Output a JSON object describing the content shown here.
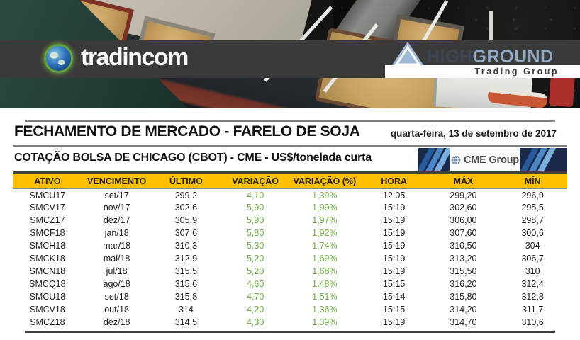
{
  "banner": {
    "tradincom_label": "tradincom",
    "highground": {
      "part1": "HIGH",
      "part2": "GROUND",
      "tagline": "Trading Group"
    }
  },
  "header": {
    "title": "FECHAMENTO DE MERCADO - FARELO DE SOJA",
    "date": "quarta-feira, 13 de setembro de 2017",
    "subtitle": "COTAÇÃO BOLSA DE CHICAGO (CBOT) - CME - US$/tonelada curta",
    "cme_logo_label": "CME Group"
  },
  "icons": [
    "globe-icon",
    "mountain-icon",
    "cme-globe-icon"
  ],
  "colors": {
    "table_header_bg": "#FFC000",
    "positive_green": "#70AD47",
    "logo_bar_dark": "#3A3A3A",
    "cme_navy": "#1B2A4A",
    "rule_gray": "#7F7F7F",
    "rule_dark": "#404040"
  },
  "table": {
    "columns": [
      "ATIVO",
      "VENCIMENTO",
      "ÚLTIMO",
      "VARIAÇÃO",
      "VARIAÇÃO (%)",
      "HORA",
      "MÁX",
      "MÍN"
    ],
    "rows": [
      [
        "SMCU17",
        "set/17",
        "299,2",
        "4,10",
        "1,39%",
        "12:05",
        "299,20",
        "296,9"
      ],
      [
        "SMCV17",
        "nov/17",
        "302,6",
        "5,90",
        "1,99%",
        "15:19",
        "302,60",
        "295,5"
      ],
      [
        "SMCZ17",
        "dez/17",
        "305,9",
        "5,90",
        "1,97%",
        "15:19",
        "306,00",
        "298,7"
      ],
      [
        "SMCF18",
        "jan/18",
        "307,6",
        "5,80",
        "1,92%",
        "15:19",
        "307,60",
        "300,6"
      ],
      [
        "SMCH18",
        "mar/18",
        "310,3",
        "5,30",
        "1,74%",
        "15:19",
        "310,50",
        "304"
      ],
      [
        "SMCK18",
        "mai/18",
        "312,9",
        "5,20",
        "1,69%",
        "15:19",
        "313,20",
        "306,7"
      ],
      [
        "SMCN18",
        "jul/18",
        "315,5",
        "5,20",
        "1,68%",
        "15:19",
        "315,50",
        "310"
      ],
      [
        "SMCQ18",
        "ago/18",
        "315,6",
        "4,60",
        "1,48%",
        "15:15",
        "316,20",
        "312,4"
      ],
      [
        "SMCU18",
        "set/18",
        "315,8",
        "4,70",
        "1,51%",
        "15:14",
        "315,80",
        "312,8"
      ],
      [
        "SMCV18",
        "out/18",
        "314",
        "4,20",
        "1,36%",
        "15:15",
        "314,20",
        "311,7"
      ],
      [
        "SMCZ18",
        "dez/18",
        "314,5",
        "4,30",
        "1,39%",
        "15:19",
        "314,70",
        "310,6"
      ]
    ]
  }
}
